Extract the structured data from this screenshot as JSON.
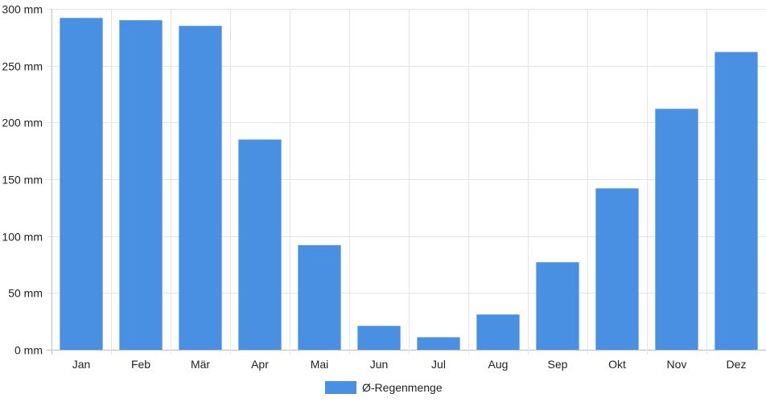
{
  "chart_data": {
    "type": "bar",
    "categories": [
      "Jan",
      "Feb",
      "Mär",
      "Apr",
      "Mai",
      "Jun",
      "Jul",
      "Aug",
      "Sep",
      "Okt",
      "Nov",
      "Dez"
    ],
    "series": [
      {
        "name": "Ø-Regenmenge",
        "values": [
          292,
          290,
          285,
          185,
          92,
          21,
          11,
          31,
          77,
          142,
          212,
          262
        ],
        "color": "#4a90e2"
      }
    ],
    "ylim": [
      0,
      300
    ],
    "yticks": [
      0,
      50,
      100,
      150,
      200,
      250,
      300
    ],
    "ytick_labels": [
      "0 mm",
      "50 mm",
      "100 mm",
      "150 mm",
      "200 mm",
      "250 mm",
      "300 mm"
    ],
    "grid": true,
    "legend_position": "bottom-center"
  }
}
